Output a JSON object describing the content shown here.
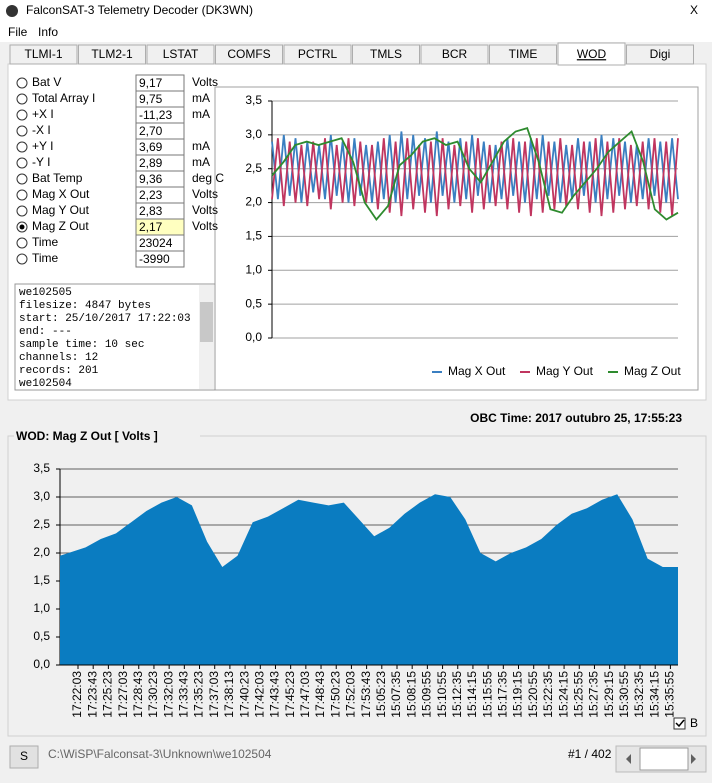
{
  "window": {
    "title": "FalconSAT-3 Telemetry Decoder (DK3WN)",
    "close": "X"
  },
  "menu": [
    "File",
    "Info"
  ],
  "tabs": [
    "TLMI-1",
    "TLM2-1",
    "LSTAT",
    "COMFS",
    "PCTRL",
    "TMLS",
    "BCR",
    "TIME",
    "WOD",
    "Digi"
  ],
  "channels": [
    {
      "name": "Bat V",
      "value": "9,17",
      "unit": "Volts"
    },
    {
      "name": "Total Array I",
      "value": "9,75",
      "unit": "mA"
    },
    {
      "name": "+X I",
      "value": "-11,23",
      "unit": "mA"
    },
    {
      "name": "-X I",
      "value": "2,70",
      "unit": ""
    },
    {
      "name": "+Y I",
      "value": "3,69",
      "unit": "mA"
    },
    {
      "name": "-Y I",
      "value": "2,89",
      "unit": "mA"
    },
    {
      "name": "Bat Temp",
      "value": "9,36",
      "unit": "deg C"
    },
    {
      "name": "Mag X Out",
      "value": "2,23",
      "unit": "Volts"
    },
    {
      "name": "Mag Y Out",
      "value": "2,83",
      "unit": "Volts"
    },
    {
      "name": "Mag Z Out",
      "value": "2,17",
      "unit": "Volts"
    },
    {
      "name": "Time",
      "value": "23024",
      "unit": ""
    },
    {
      "name": "Time",
      "value": "-3990",
      "unit": ""
    }
  ],
  "log": [
    "we102505",
    "filesize: 4847 bytes",
    "start: 25/10/2017 17:22:03",
    "end:   ---",
    "sample time: 10 sec",
    "channels: 12",
    "records: 201",
    "we102504"
  ],
  "obc_time": "OBC Time: 2017 outubro 25, 17:55:23",
  "footer": {
    "button": "S",
    "path": "C:\\WiSP\\Falconsat-3\\Unknown\\we102504",
    "record": "#1 / 402",
    "checkbox": "B"
  },
  "chart_data": [
    {
      "type": "line",
      "ylim": [
        0,
        3.5
      ],
      "yticks": [
        {
          "value": 0,
          "label": "0,0"
        },
        {
          "value": 0.5,
          "label": "0,5"
        },
        {
          "value": 1,
          "label": "1,0"
        },
        {
          "value": 1.5,
          "label": "1,5"
        },
        {
          "value": 2,
          "label": "2,0"
        },
        {
          "value": 2.5,
          "label": "2,5"
        },
        {
          "value": 3,
          "label": "3,0"
        },
        {
          "value": 3.5,
          "label": "3,5"
        }
      ],
      "grid": true,
      "series": [
        {
          "name": "Mag X Out",
          "color": "#3a7fc1",
          "values": [
            2.9,
            2.05,
            3.0,
            2.1,
            2.95,
            2.0,
            2.9,
            2.15,
            2.85,
            2.05,
            3.0,
            2.1,
            2.9,
            2.0,
            2.95,
            2.1,
            2.85,
            2.0,
            2.9,
            2.05,
            3.0,
            2.0,
            3.05,
            2.05,
            3.0,
            2.1,
            2.95,
            2.0,
            3.05,
            2.1,
            2.9,
            2.0,
            2.95,
            2.05,
            3.0,
            2.1,
            2.9,
            2.0,
            2.85,
            2.05,
            2.95,
            2.1,
            2.9,
            2.0,
            2.95,
            2.05,
            3.0,
            2.1,
            2.9,
            2.0,
            2.85,
            2.05,
            2.95,
            2.1,
            2.9,
            2.0,
            3.0,
            2.05,
            2.95,
            2.1,
            2.9,
            2.0,
            2.85,
            2.05,
            2.95,
            2.1,
            2.9,
            2.0,
            2.95,
            2.05
          ]
        },
        {
          "name": "Mag Y Out",
          "color": "#c0355f",
          "values": [
            2.05,
            2.95,
            1.95,
            2.9,
            2.0,
            2.85,
            1.95,
            2.9,
            2.05,
            2.95,
            1.9,
            2.85,
            2.0,
            2.95,
            1.95,
            2.9,
            2.0,
            2.85,
            1.9,
            2.95,
            1.85,
            2.9,
            1.8,
            2.95,
            1.9,
            2.85,
            1.85,
            2.9,
            1.8,
            2.95,
            1.9,
            2.85,
            1.95,
            2.9,
            1.85,
            2.95,
            1.9,
            2.85,
            1.95,
            2.9,
            1.9,
            2.95,
            1.85,
            2.9,
            1.8,
            2.95,
            1.85,
            2.9,
            1.9,
            2.95,
            1.95,
            2.85,
            1.9,
            2.9,
            1.85,
            2.95,
            1.8,
            2.9,
            1.85,
            2.95,
            1.9,
            2.85,
            1.95,
            2.9,
            1.9,
            2.95,
            1.85,
            2.9,
            1.8,
            2.95
          ]
        },
        {
          "name": "Mag Z Out",
          "color": "#2e8b2e",
          "values": [
            2.4,
            2.6,
            2.85,
            2.9,
            2.85,
            2.9,
            2.95,
            2.6,
            2.0,
            1.75,
            1.95,
            2.55,
            2.7,
            2.9,
            2.95,
            2.85,
            2.9,
            2.5,
            2.3,
            2.6,
            2.9,
            3.05,
            3.1,
            2.6,
            1.9,
            1.85,
            2.1,
            2.3,
            2.5,
            2.75,
            2.9,
            3.05,
            2.6,
            1.9,
            1.75,
            1.85
          ]
        }
      ]
    },
    {
      "type": "area",
      "title": "WOD: Mag Z Out  [ Volts ]",
      "ylim": [
        0,
        3.5
      ],
      "yticks": [
        {
          "value": 0,
          "label": "0,0"
        },
        {
          "value": 0.5,
          "label": "0,5"
        },
        {
          "value": 1,
          "label": "1,0"
        },
        {
          "value": 1.5,
          "label": "1,5"
        },
        {
          "value": 2,
          "label": "2,0"
        },
        {
          "value": 2.5,
          "label": "2,5"
        },
        {
          "value": 3,
          "label": "3,0"
        },
        {
          "value": 3.5,
          "label": "3,5"
        }
      ],
      "grid": true,
      "color": "#0a7cc1",
      "categories": [
        "17:22:03",
        "17:23:43",
        "17:25:23",
        "17:27:03",
        "17:28:43",
        "17:30:23",
        "17:32:03",
        "17:33:43",
        "17:35:23",
        "17:37:03",
        "17:38:13",
        "17:40:23",
        "17:42:03",
        "17:43:43",
        "17:45:23",
        "17:47:03",
        "17:48:43",
        "17:50:23",
        "17:52:03",
        "17:53:43",
        "15:05:23",
        "15:07:35",
        "15:08:15",
        "15:09:55",
        "15:10:55",
        "15:12:35",
        "15:14:15",
        "15:15:55",
        "15:17:35",
        "15:19:15",
        "15:20:55",
        "15:22:35",
        "15:24:15",
        "15:25:55",
        "15:27:35",
        "15:29:15",
        "15:30:55",
        "15:32:35",
        "15:34:15",
        "15:35:55"
      ],
      "values": [
        1.95,
        2.1,
        2.25,
        2.35,
        2.55,
        2.75,
        2.9,
        3.0,
        2.85,
        2.2,
        1.75,
        1.95,
        2.55,
        2.65,
        2.8,
        2.95,
        2.9,
        2.85,
        2.9,
        2.6,
        2.3,
        2.45,
        2.7,
        2.9,
        3.05,
        3.0,
        2.6,
        2.0,
        1.85,
        2.0,
        2.1,
        2.25,
        2.5,
        2.7,
        2.8,
        2.95,
        3.05,
        2.6,
        1.9,
        1.75
      ]
    }
  ]
}
